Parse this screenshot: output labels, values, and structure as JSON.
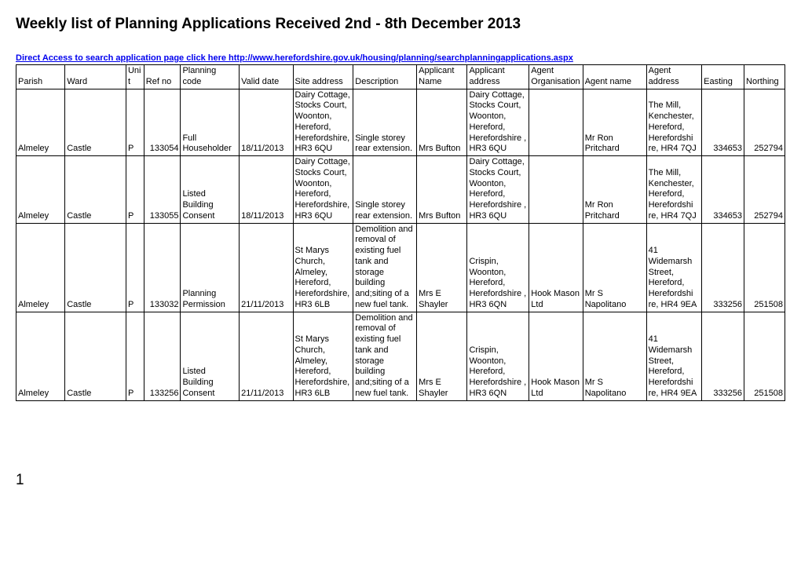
{
  "title": "Weekly list of Planning Applications Received 2nd - 8th December 2013",
  "link_text": "Direct Access to search application page click here http://www.herefordshire.gov.uk/housing/planning/searchplanningapplications.aspx",
  "page_number": "1",
  "columns": [
    "Parish",
    "Ward",
    "Unit",
    "Ref no",
    "Planning code",
    "Valid date",
    "Site address",
    "Description",
    "Applicant Name",
    "Applicant address",
    "Agent Organisation",
    "Agent name",
    "Agent address",
    "Easting",
    "Northing"
  ],
  "rows": [
    {
      "parish": "Almeley",
      "ward": "Castle",
      "unit": "P",
      "refno": "133054",
      "code": "Full Householder",
      "valid": "18/11/2013",
      "site": "Dairy Cottage, Stocks Court, Woonton, Hereford, Herefordshire, HR3 6QU",
      "desc": "Single storey rear extension.",
      "appname": "Mrs Bufton",
      "appaddr": "Dairy Cottage, Stocks Court, Woonton, Hereford, Herefordshire , HR3 6QU",
      "agentorg": "",
      "agentnm": "Mr Ron Pritchard",
      "agentadr": "The Mill, Kenchester, Hereford, Herefordshi re, HR4 7QJ",
      "easting": "334653",
      "northing": "252794"
    },
    {
      "parish": "Almeley",
      "ward": "Castle",
      "unit": "P",
      "refno": "133055",
      "code": "Listed Building Consent",
      "valid": "18/11/2013",
      "site": "Dairy Cottage, Stocks Court, Woonton, Hereford, Herefordshire, HR3 6QU",
      "desc": "Single storey rear extension.",
      "appname": "Mrs Bufton",
      "appaddr": "Dairy Cottage, Stocks Court, Woonton, Hereford, Herefordshire , HR3 6QU",
      "agentorg": "",
      "agentnm": "Mr Ron Pritchard",
      "agentadr": "The Mill, Kenchester, Hereford, Herefordshi re, HR4 7QJ",
      "easting": "334653",
      "northing": "252794"
    },
    {
      "parish": "Almeley",
      "ward": "Castle",
      "unit": "P",
      "refno": "133032",
      "code": "Planning Permission",
      "valid": "21/11/2013",
      "site": "St Marys Church, Almeley, Hereford, Herefordshire, HR3 6LB",
      "desc": "Demolition and removal of existing fuel tank and storage building and;siting of a new fuel tank.",
      "appname": "Mrs E Shayler",
      "appaddr": "Crispin, Woonton, Hereford, Herefordshire , HR3 6QN",
      "agentorg": "Hook Mason Ltd",
      "agentnm": "Mr S Napolitano",
      "agentadr": "41 Widemarsh Street, Hereford, Herefordshi re, HR4 9EA",
      "easting": "333256",
      "northing": "251508"
    },
    {
      "parish": "Almeley",
      "ward": "Castle",
      "unit": "P",
      "refno": "133256",
      "code": "Listed Building Consent",
      "valid": "21/11/2013",
      "site": "St Marys Church, Almeley, Hereford, Herefordshire, HR3 6LB",
      "desc": "Demolition and removal of existing fuel tank and storage building and;siting of a new fuel tank.",
      "appname": "Mrs E Shayler",
      "appaddr": "Crispin, Woonton, Hereford, Herefordshire , HR3 6QN",
      "agentorg": "Hook Mason Ltd",
      "agentnm": "Mr S Napolitano",
      "agentadr": "41 Widemarsh Street, Hereford, Herefordshi re, HR4 9EA",
      "easting": "333256",
      "northing": "251508"
    }
  ]
}
